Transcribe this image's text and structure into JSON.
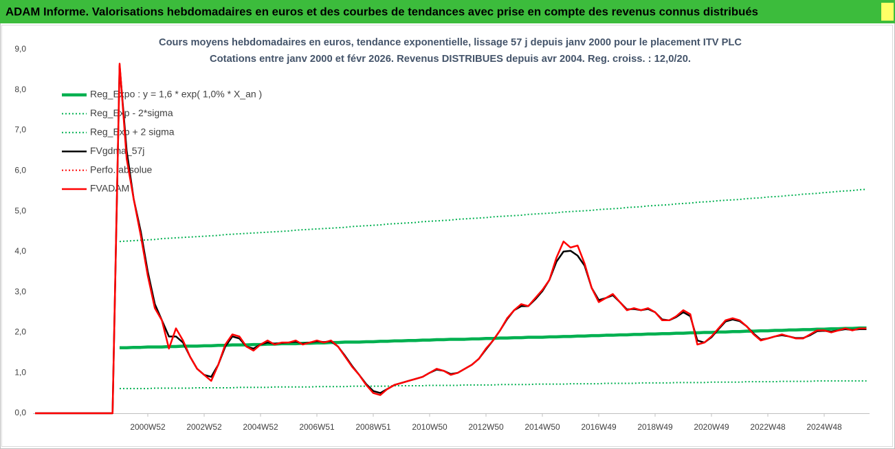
{
  "header": {
    "title": "ADAM Informe. Valorisations hebdomadaires en euros et des courbes de tendances avec prise en compte des revenus connus distribués"
  },
  "chart_data": {
    "type": "line",
    "title": "Cours moyens hebdomadaires en euros, tendance exponentielle, lissage 57 j depuis janv 2000 pour le placement ITV PLC",
    "subtitle": "Cotations entre janv 2000 et févr 2026. Revenus DISTRIBUES depuis avr 2004. Reg. croiss. : 12,0/20.",
    "ylim": [
      0,
      9
    ],
    "yticks": [
      {
        "value": 0,
        "label": "0,0"
      },
      {
        "value": 1,
        "label": "1,0"
      },
      {
        "value": 2,
        "label": "2,0"
      },
      {
        "value": 3,
        "label": "3,0"
      },
      {
        "value": 4,
        "label": "4,0"
      },
      {
        "value": 5,
        "label": "5,0"
      },
      {
        "value": 6,
        "label": "6,0"
      },
      {
        "value": 7,
        "label": "7,0"
      },
      {
        "value": 8,
        "label": "8,0"
      },
      {
        "value": 9,
        "label": "9,0"
      }
    ],
    "grid": false,
    "legend": "upper left",
    "categories": [
      null,
      null,
      null,
      null,
      null,
      null,
      null,
      null,
      null,
      null,
      null,
      null,
      null,
      null,
      null,
      null,
      "2000W52",
      null,
      null,
      null,
      null,
      null,
      null,
      null,
      "2002W52",
      null,
      null,
      null,
      null,
      null,
      null,
      null,
      "2004W52",
      null,
      null,
      null,
      null,
      null,
      null,
      null,
      "2006W51",
      null,
      null,
      null,
      null,
      null,
      null,
      null,
      "2008W51",
      null,
      null,
      null,
      null,
      null,
      null,
      null,
      "2010W50",
      null,
      null,
      null,
      null,
      null,
      null,
      null,
      "2012W50",
      null,
      null,
      null,
      null,
      null,
      null,
      null,
      "2014W50",
      null,
      null,
      null,
      null,
      null,
      null,
      null,
      "2016W49",
      null,
      null,
      null,
      null,
      null,
      null,
      null,
      "2018W49",
      null,
      null,
      null,
      null,
      null,
      null,
      null,
      "2020W49",
      null,
      null,
      null,
      null,
      null,
      null,
      null,
      "2022W48",
      null,
      null,
      null,
      null,
      null,
      null,
      null,
      "2024W48",
      null,
      null,
      null,
      null,
      null,
      null
    ],
    "series": [
      {
        "name": "Reg_Expo : y = 1,6 * exp( 1,0% *  X_an )",
        "color": "#00b050",
        "line_style": "thick",
        "values": [
          null,
          null,
          null,
          null,
          null,
          null,
          null,
          null,
          null,
          null,
          null,
          null,
          1.62,
          1.62,
          1.63,
          1.63,
          1.64,
          1.64,
          1.64,
          1.65,
          1.65,
          1.66,
          1.66,
          1.66,
          1.67,
          1.67,
          1.68,
          1.68,
          1.69,
          1.69,
          1.69,
          1.7,
          1.7,
          1.71,
          1.71,
          1.72,
          1.72,
          1.72,
          1.73,
          1.73,
          1.74,
          1.74,
          1.75,
          1.75,
          1.76,
          1.76,
          1.76,
          1.77,
          1.77,
          1.78,
          1.78,
          1.79,
          1.79,
          1.8,
          1.8,
          1.81,
          1.81,
          1.82,
          1.82,
          1.83,
          1.83,
          1.83,
          1.84,
          1.84,
          1.85,
          1.85,
          1.86,
          1.86,
          1.87,
          1.87,
          1.88,
          1.88,
          1.88,
          1.89,
          1.89,
          1.9,
          1.9,
          1.91,
          1.91,
          1.92,
          1.92,
          1.93,
          1.93,
          1.94,
          1.94,
          1.95,
          1.95,
          1.96,
          1.96,
          1.97,
          1.97,
          1.98,
          1.98,
          1.99,
          1.99,
          2.0,
          2.0,
          2.01,
          2.01,
          2.02,
          2.02,
          2.03,
          2.03,
          2.04,
          2.04,
          2.05,
          2.05,
          2.06,
          2.06,
          2.07,
          2.07,
          2.08,
          2.08,
          2.09,
          2.09,
          2.1,
          2.1,
          2.11,
          2.11
        ]
      },
      {
        "name": "Reg_Exp - 2*sigma",
        "color": "#00b050",
        "line_style": "dotted",
        "values": [
          null,
          null,
          null,
          null,
          null,
          null,
          null,
          null,
          null,
          null,
          null,
          null,
          0.61,
          0.61,
          0.61,
          0.61,
          0.61,
          0.62,
          0.62,
          0.62,
          0.62,
          0.62,
          0.62,
          0.63,
          0.63,
          0.63,
          0.63,
          0.63,
          0.63,
          0.64,
          0.64,
          0.64,
          0.64,
          0.64,
          0.65,
          0.65,
          0.65,
          0.65,
          0.65,
          0.65,
          0.66,
          0.66,
          0.66,
          0.66,
          0.66,
          0.67,
          0.67,
          0.67,
          0.67,
          0.67,
          0.67,
          0.68,
          0.68,
          0.68,
          0.68,
          0.68,
          0.69,
          0.69,
          0.69,
          0.69,
          0.69,
          0.7,
          0.7,
          0.7,
          0.7,
          0.7,
          0.71,
          0.71,
          0.71,
          0.71,
          0.71,
          0.72,
          0.72,
          0.72,
          0.72,
          0.72,
          0.73,
          0.73,
          0.73,
          0.73,
          0.73,
          0.74,
          0.74,
          0.74,
          0.74,
          0.74,
          0.75,
          0.75,
          0.75,
          0.75,
          0.75,
          0.76,
          0.76,
          0.76,
          0.76,
          0.76,
          0.77,
          0.77,
          0.77,
          0.77,
          0.77,
          0.78,
          0.78,
          0.78,
          0.78,
          0.78,
          0.79,
          0.79,
          0.79,
          0.79,
          0.79,
          0.8,
          0.8,
          0.8,
          0.8,
          0.8,
          0.8,
          0.8,
          0.8
        ]
      },
      {
        "name": "Reg_Exp + 2 sigma",
        "color": "#00b050",
        "line_style": "dotted",
        "values": [
          null,
          null,
          null,
          null,
          null,
          null,
          null,
          null,
          null,
          null,
          null,
          null,
          4.25,
          4.26,
          4.27,
          4.28,
          4.29,
          4.3,
          4.32,
          4.33,
          4.34,
          4.35,
          4.36,
          4.37,
          4.38,
          4.39,
          4.4,
          4.42,
          4.43,
          4.44,
          4.45,
          4.46,
          4.47,
          4.48,
          4.49,
          4.5,
          4.51,
          4.53,
          4.54,
          4.55,
          4.56,
          4.57,
          4.58,
          4.59,
          4.6,
          4.62,
          4.63,
          4.64,
          4.65,
          4.66,
          4.68,
          4.69,
          4.7,
          4.71,
          4.72,
          4.74,
          4.75,
          4.76,
          4.77,
          4.78,
          4.8,
          4.81,
          4.82,
          4.83,
          4.84,
          4.86,
          4.87,
          4.88,
          4.89,
          4.9,
          4.92,
          4.93,
          4.94,
          4.95,
          4.96,
          4.98,
          4.99,
          5.0,
          5.01,
          5.02,
          5.04,
          5.05,
          5.06,
          5.07,
          5.09,
          5.1,
          5.11,
          5.13,
          5.14,
          5.15,
          5.16,
          5.18,
          5.19,
          5.2,
          5.22,
          5.23,
          5.24,
          5.26,
          5.27,
          5.28,
          5.29,
          5.31,
          5.32,
          5.33,
          5.35,
          5.36,
          5.37,
          5.39,
          5.4,
          5.42,
          5.43,
          5.44,
          5.46,
          5.47,
          5.49,
          5.5,
          5.51,
          5.53,
          5.54
        ]
      },
      {
        "name": "FVgdma_57j",
        "color": "#000000",
        "line_style": "solid",
        "values": [
          0,
          0,
          0,
          0,
          0,
          0,
          0,
          0,
          0,
          0,
          0,
          0,
          8.6,
          6.5,
          5.3,
          4.5,
          3.5,
          2.7,
          2.3,
          1.9,
          1.9,
          1.75,
          1.4,
          1.1,
          0.95,
          0.9,
          1.2,
          1.65,
          1.9,
          1.85,
          1.65,
          1.6,
          1.7,
          1.75,
          1.72,
          1.74,
          1.75,
          1.77,
          1.72,
          1.75,
          1.78,
          1.76,
          1.78,
          1.65,
          1.42,
          1.17,
          0.95,
          0.72,
          0.55,
          0.5,
          0.6,
          0.7,
          0.75,
          0.8,
          0.85,
          0.9,
          1.0,
          1.08,
          1.05,
          0.97,
          1.0,
          1.1,
          1.2,
          1.35,
          1.58,
          1.8,
          2.05,
          2.33,
          2.55,
          2.65,
          2.65,
          2.82,
          3.02,
          3.3,
          3.75,
          4.0,
          4.02,
          3.9,
          3.65,
          3.1,
          2.8,
          2.85,
          2.92,
          2.75,
          2.57,
          2.58,
          2.55,
          2.58,
          2.5,
          2.32,
          2.3,
          2.38,
          2.5,
          2.4,
          1.8,
          1.75,
          1.88,
          2.08,
          2.27,
          2.32,
          2.28,
          2.15,
          1.97,
          1.82,
          1.85,
          1.9,
          1.93,
          1.9,
          1.86,
          1.86,
          1.93,
          2.03,
          2.04,
          2.02,
          2.05,
          2.08,
          2.06,
          2.08,
          2.08
        ]
      },
      {
        "name": "Perfo. absolue",
        "color": "#ff0000",
        "line_style": "dotted",
        "values": [
          0,
          0,
          0,
          0,
          0,
          0,
          0,
          0,
          0,
          0,
          0,
          0,
          8.65,
          6.3,
          5.3,
          4.4,
          3.4,
          2.6,
          2.3,
          1.6,
          2.1,
          1.8,
          1.4,
          1.1,
          0.95,
          0.8,
          1.2,
          1.7,
          1.95,
          1.9,
          1.65,
          1.55,
          1.7,
          1.8,
          1.7,
          1.75,
          1.75,
          1.8,
          1.7,
          1.75,
          1.8,
          1.75,
          1.8,
          1.65,
          1.4,
          1.15,
          0.95,
          0.7,
          0.5,
          0.45,
          0.6,
          0.7,
          0.75,
          0.8,
          0.85,
          0.9,
          1.0,
          1.1,
          1.05,
          0.95,
          1.0,
          1.1,
          1.2,
          1.35,
          1.6,
          1.8,
          2.05,
          2.35,
          2.55,
          2.7,
          2.65,
          2.85,
          3.05,
          3.3,
          3.85,
          4.25,
          4.1,
          4.15,
          3.7,
          3.1,
          2.75,
          2.85,
          2.95,
          2.75,
          2.55,
          2.6,
          2.55,
          2.6,
          2.5,
          2.3,
          2.3,
          2.4,
          2.55,
          2.45,
          1.7,
          1.75,
          1.9,
          2.1,
          2.3,
          2.35,
          2.3,
          2.15,
          1.95,
          1.8,
          1.85,
          1.9,
          1.95,
          1.9,
          1.85,
          1.85,
          1.95,
          2.05,
          2.05,
          2.0,
          2.05,
          2.1,
          2.05,
          2.1,
          2.1
        ]
      },
      {
        "name": "FVADAM",
        "color": "#ff0000",
        "line_style": "solid",
        "values": [
          0,
          0,
          0,
          0,
          0,
          0,
          0,
          0,
          0,
          0,
          0,
          0,
          8.65,
          6.3,
          5.3,
          4.4,
          3.4,
          2.6,
          2.3,
          1.6,
          2.1,
          1.8,
          1.4,
          1.1,
          0.95,
          0.8,
          1.2,
          1.7,
          1.95,
          1.9,
          1.65,
          1.55,
          1.7,
          1.8,
          1.7,
          1.75,
          1.75,
          1.8,
          1.7,
          1.75,
          1.8,
          1.75,
          1.8,
          1.65,
          1.4,
          1.15,
          0.95,
          0.7,
          0.5,
          0.45,
          0.6,
          0.7,
          0.75,
          0.8,
          0.85,
          0.9,
          1.0,
          1.1,
          1.05,
          0.95,
          1.0,
          1.1,
          1.2,
          1.35,
          1.6,
          1.8,
          2.05,
          2.35,
          2.55,
          2.7,
          2.65,
          2.85,
          3.05,
          3.3,
          3.85,
          4.25,
          4.1,
          4.15,
          3.7,
          3.1,
          2.75,
          2.85,
          2.95,
          2.75,
          2.55,
          2.6,
          2.55,
          2.6,
          2.5,
          2.3,
          2.3,
          2.4,
          2.55,
          2.45,
          1.7,
          1.75,
          1.9,
          2.1,
          2.3,
          2.35,
          2.3,
          2.15,
          1.95,
          1.8,
          1.85,
          1.9,
          1.95,
          1.9,
          1.85,
          1.85,
          1.95,
          2.05,
          2.05,
          2.0,
          2.05,
          2.1,
          2.05,
          2.1,
          2.1
        ]
      }
    ]
  }
}
